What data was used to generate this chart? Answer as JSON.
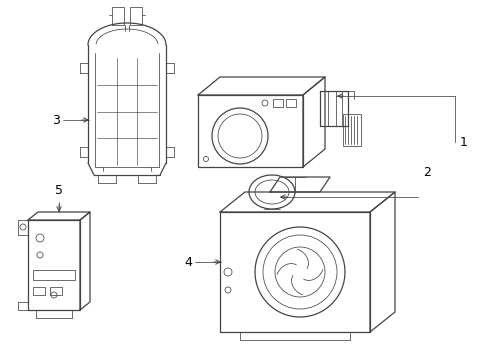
{
  "background_color": "#ffffff",
  "line_color": "#444444",
  "label_color": "#000000",
  "figsize": [
    4.9,
    3.6
  ],
  "dpi": 100
}
